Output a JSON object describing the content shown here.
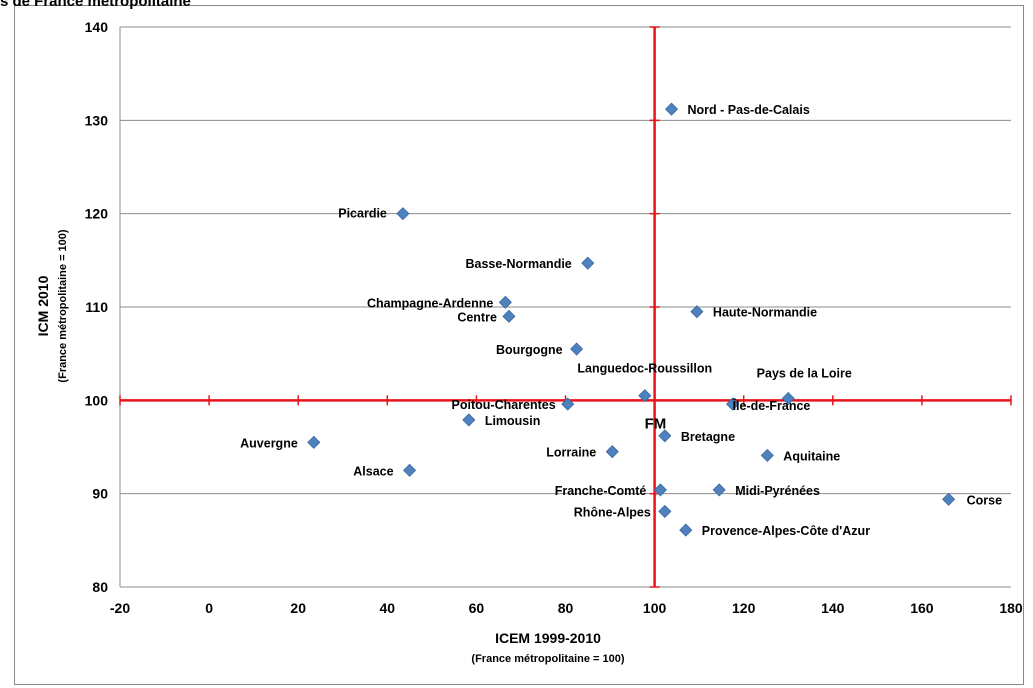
{
  "header": {
    "title_fragment": "s de France métropolitaine"
  },
  "chart_data": {
    "type": "scatter",
    "xlabel": "ICEM 1999-2010",
    "xlabel_sub": "(France métropolitaine = 100)",
    "ylabel": "ICM 2010",
    "ylabel_sub": "(France métropolitaine = 100)",
    "xlim": [
      -20,
      180
    ],
    "ylim": [
      80,
      140
    ],
    "x_ticks": [
      -20,
      0,
      20,
      40,
      60,
      80,
      100,
      120,
      140,
      160,
      180
    ],
    "y_ticks": [
      80,
      90,
      100,
      110,
      120,
      130,
      140
    ],
    "grid": "horizontal",
    "reference_lines": {
      "x": 100,
      "y": 100,
      "color": "#e8141b"
    },
    "marker_color": "#4f81bd",
    "points": [
      {
        "name": "Nord - Pas-de-Calais",
        "x": 103.8,
        "y": 131.2
      },
      {
        "name": "Picardie",
        "x": 43.5,
        "y": 120.0
      },
      {
        "name": "Basse-Normandie",
        "x": 85.0,
        "y": 114.7
      },
      {
        "name": "Champagne-Ardenne",
        "x": 66.5,
        "y": 110.5
      },
      {
        "name": "Centre",
        "x": 67.3,
        "y": 109.0
      },
      {
        "name": "Haute-Normandie",
        "x": 109.5,
        "y": 109.5
      },
      {
        "name": "Bourgogne",
        "x": 82.5,
        "y": 105.5
      },
      {
        "name": "Languedoc-Roussillon",
        "x": 97.8,
        "y": 100.5
      },
      {
        "name": "Pays de la Loire",
        "x": 130.0,
        "y": 100.2
      },
      {
        "name": "Poitou-Charentes",
        "x": 80.5,
        "y": 99.6
      },
      {
        "name": "FM",
        "x": 100.0,
        "y": 100.0
      },
      {
        "name": "Île-de-France",
        "x": 117.5,
        "y": 99.6
      },
      {
        "name": "Limousin",
        "x": 58.3,
        "y": 97.9
      },
      {
        "name": "Auvergne",
        "x": 23.5,
        "y": 95.5
      },
      {
        "name": "Bretagne",
        "x": 102.3,
        "y": 96.2
      },
      {
        "name": "Lorraine",
        "x": 90.5,
        "y": 94.5
      },
      {
        "name": "Aquitaine",
        "x": 125.3,
        "y": 94.1
      },
      {
        "name": "Alsace",
        "x": 45.0,
        "y": 92.5
      },
      {
        "name": "Franche-Comté",
        "x": 101.3,
        "y": 90.4
      },
      {
        "name": "Midi-Pyrénées",
        "x": 114.5,
        "y": 90.4
      },
      {
        "name": "Corse",
        "x": 166.0,
        "y": 89.4
      },
      {
        "name": "Rhône-Alpes",
        "x": 102.3,
        "y": 88.1
      },
      {
        "name": "Provence-Alpes-Côte d'Azur",
        "x": 107.0,
        "y": 86.1
      }
    ]
  }
}
